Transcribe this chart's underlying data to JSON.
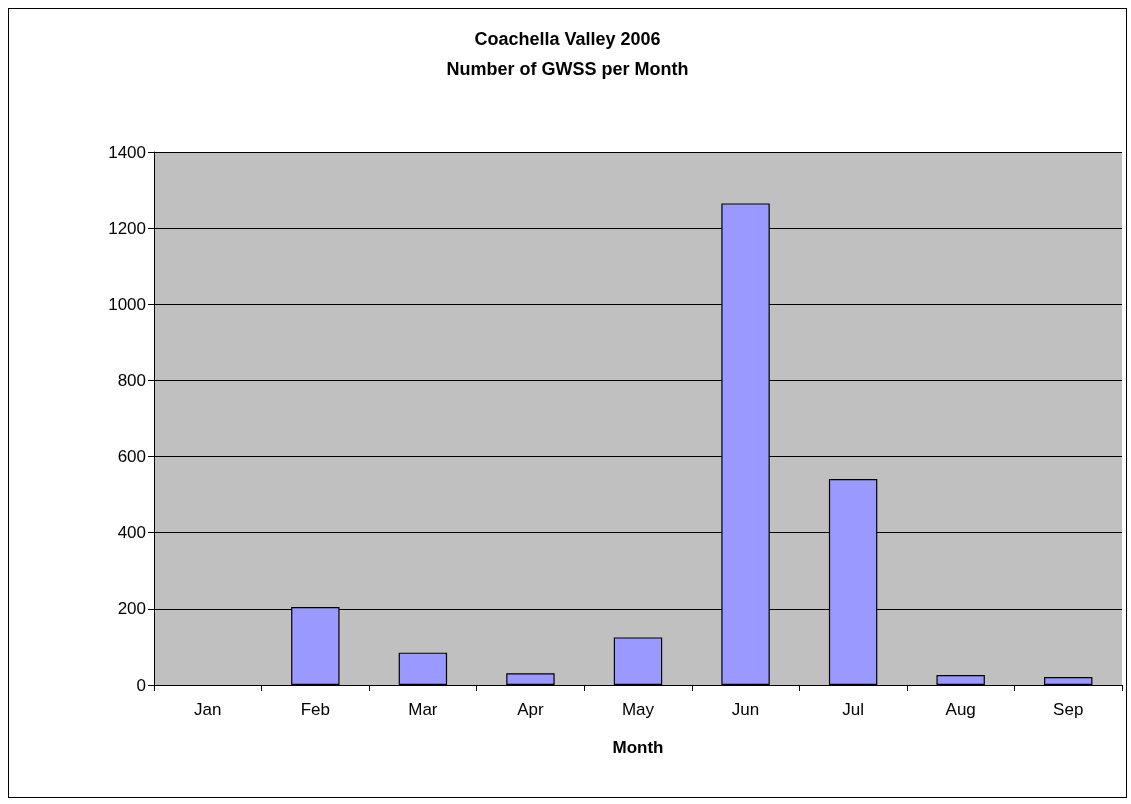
{
  "chart_data": {
    "type": "bar",
    "title": "Coachella Valley 2006\nNumber of GWSS per Month",
    "xlabel": "Month",
    "categories": [
      "Jan",
      "Feb",
      "Mar",
      "Apr",
      "May",
      "Jun",
      "Jul",
      "Aug",
      "Sep"
    ],
    "series": [
      {
        "color": "#9999ff",
        "values": [
          null,
          205,
          85,
          31,
          125,
          1265,
          541,
          26,
          21
        ]
      }
    ],
    "ylim": [
      0,
      1400
    ],
    "yticks": [
      0,
      200,
      400,
      600,
      800,
      1000,
      1200,
      1400
    ],
    "grid": "y"
  }
}
